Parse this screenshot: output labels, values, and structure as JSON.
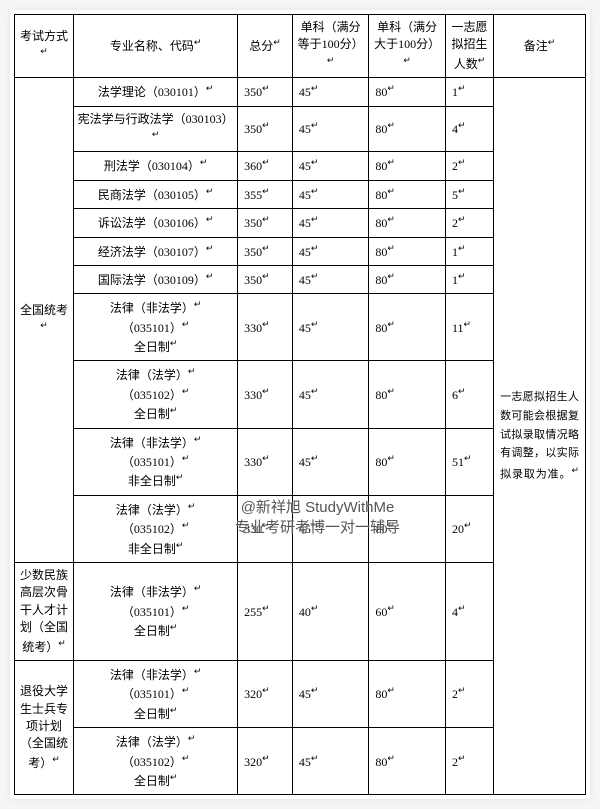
{
  "headers": {
    "exam": "考试方式",
    "major": "专业名称、代码",
    "total": "总分",
    "single100": "单科（满分等于100分）",
    "singleGt100": "单科（满分大于100分）",
    "planned": "一志愿拟招生人数",
    "remark": "备注"
  },
  "mark": "↵",
  "groups": [
    {
      "name": "全国统考",
      "rows": [
        {
          "major": "法学理论（030101）",
          "total": "350",
          "s100": "45",
          "sgt": "80",
          "plan": "1"
        },
        {
          "major": "宪法学与行政法学（030103）",
          "total": "350",
          "s100": "45",
          "sgt": "80",
          "plan": "4"
        },
        {
          "major": "刑法学（030104）",
          "total": "360",
          "s100": "45",
          "sgt": "80",
          "plan": "2"
        },
        {
          "major": "民商法学（030105）",
          "total": "355",
          "s100": "45",
          "sgt": "80",
          "plan": "5"
        },
        {
          "major": "诉讼法学（030106）",
          "total": "350",
          "s100": "45",
          "sgt": "80",
          "plan": "2"
        },
        {
          "major": "经济法学（030107）",
          "total": "350",
          "s100": "45",
          "sgt": "80",
          "plan": "1"
        },
        {
          "major": "国际法学（030109）",
          "total": "350",
          "s100": "45",
          "sgt": "80",
          "plan": "1"
        },
        {
          "major": "法律（非法学）\n（035101）\n全日制",
          "total": "330",
          "s100": "45",
          "sgt": "80",
          "plan": "11"
        },
        {
          "major": "法律（法学）\n（035102）\n全日制",
          "total": "330",
          "s100": "45",
          "sgt": "80",
          "plan": "6"
        },
        {
          "major": "法律（非法学）\n（035101）\n非全日制",
          "total": "330",
          "s100": "45",
          "sgt": "80",
          "plan": "51"
        },
        {
          "major": "法律（法学）\n（035102）\n非全日制",
          "total": "330",
          "s100": "45",
          "sgt": "80",
          "plan": "20"
        }
      ]
    },
    {
      "name": "少数民族高层次骨干人才计划（全国统考）",
      "rows": [
        {
          "major": "法律（非法学）\n（035101）\n全日制",
          "total": "255",
          "s100": "40",
          "sgt": "60",
          "plan": "4"
        }
      ]
    },
    {
      "name": "退役大学生士兵专项计划（全国统考）",
      "rows": [
        {
          "major": "法律（非法学）\n（035101）\n全日制",
          "total": "320",
          "s100": "45",
          "sgt": "80",
          "plan": "2"
        },
        {
          "major": "法律（法学）\n（035102）\n全日制",
          "total": "320",
          "s100": "45",
          "sgt": "80",
          "plan": "2"
        }
      ]
    }
  ],
  "remarkText": "一志愿拟招生人数可能会根据复试拟录取情况略有调整，以实际拟录取为准。",
  "watermark": {
    "line1": "@新祥旭 StudyWithMe",
    "line2": "专业考研考博一对一辅导"
  },
  "style": {
    "bg": "#f5f5f5",
    "paper": "#ffffff",
    "border": "#000000",
    "fontSize": 12
  }
}
